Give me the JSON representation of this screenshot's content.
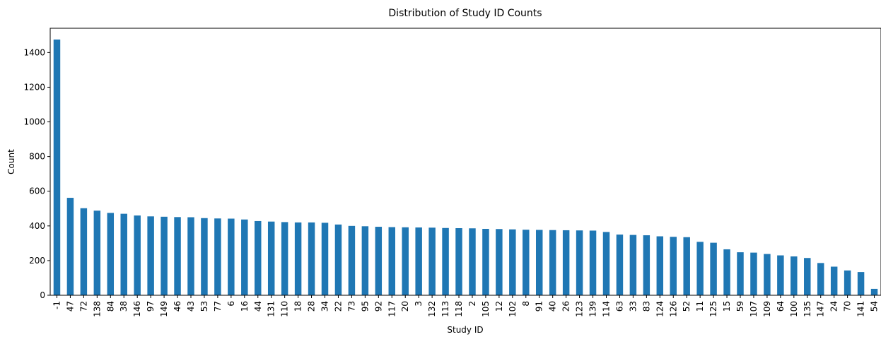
{
  "chart_data": {
    "type": "bar",
    "title": "Distribution of Study ID Counts",
    "xlabel": "Study ID",
    "ylabel": "Count",
    "ylim": [
      0,
      1540
    ],
    "yticks": [
      0,
      200,
      400,
      600,
      800,
      1000,
      1200,
      1400
    ],
    "grid": false,
    "bar_color": "#1f77b4",
    "categories": [
      "-1",
      "47",
      "72",
      "138",
      "84",
      "38",
      "146",
      "97",
      "149",
      "46",
      "43",
      "53",
      "77",
      "6",
      "16",
      "44",
      "131",
      "110",
      "18",
      "28",
      "34",
      "22",
      "73",
      "95",
      "92",
      "117",
      "20",
      "3",
      "132",
      "113",
      "118",
      "2",
      "105",
      "12",
      "102",
      "8",
      "91",
      "40",
      "26",
      "123",
      "139",
      "114",
      "63",
      "33",
      "83",
      "124",
      "126",
      "52",
      "11",
      "125",
      "15",
      "59",
      "107",
      "109",
      "64",
      "100",
      "135",
      "147",
      "24",
      "70",
      "141",
      "54"
    ],
    "values": [
      1475,
      562,
      502,
      488,
      475,
      470,
      460,
      455,
      453,
      451,
      450,
      445,
      443,
      442,
      437,
      428,
      425,
      422,
      420,
      420,
      418,
      408,
      400,
      398,
      395,
      393,
      392,
      391,
      390,
      388,
      387,
      386,
      383,
      382,
      380,
      378,
      377,
      376,
      375,
      374,
      373,
      365,
      350,
      348,
      346,
      340,
      337,
      335,
      308,
      303,
      265,
      248,
      246,
      238,
      230,
      224,
      215,
      186,
      165,
      143,
      134,
      37
    ]
  }
}
